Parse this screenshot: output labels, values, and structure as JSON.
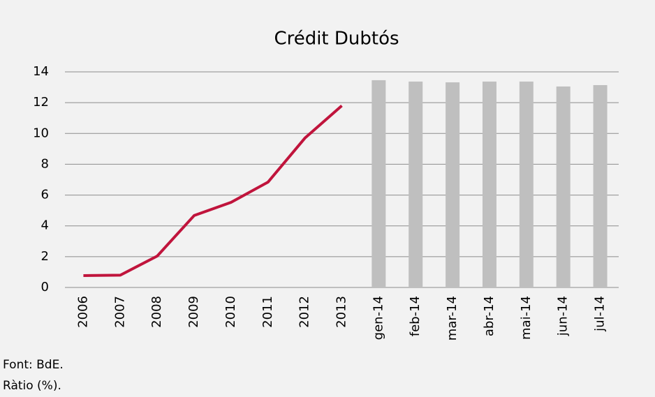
{
  "chart_data": {
    "type": "combo",
    "title": "Crédit Dubtós",
    "categories": [
      "2006",
      "2007",
      "2008",
      "2009",
      "2010",
      "2011",
      "2012",
      "2013",
      "gen-14",
      "feb-14",
      "mar-14",
      "abr-14",
      "mai-14",
      "jun-14",
      "jul-14"
    ],
    "series": [
      {
        "type": "line",
        "color": "#c0143c",
        "values": [
          0.77,
          0.8,
          2.04,
          4.67,
          5.53,
          6.84,
          9.7,
          11.8,
          null,
          null,
          null,
          null,
          null,
          null,
          null
        ]
      },
      {
        "type": "bar",
        "color": "#bfbfbf",
        "values": [
          null,
          null,
          null,
          null,
          null,
          null,
          null,
          null,
          13.46,
          13.37,
          13.32,
          13.37,
          13.37,
          13.05,
          13.14
        ]
      }
    ],
    "ylim": [
      0,
      14
    ],
    "yticks": [
      0,
      2,
      4,
      6,
      8,
      10,
      12,
      14
    ],
    "grid": true,
    "footnotes": [
      "Font: BdE.",
      "Ràtio (%)."
    ]
  }
}
